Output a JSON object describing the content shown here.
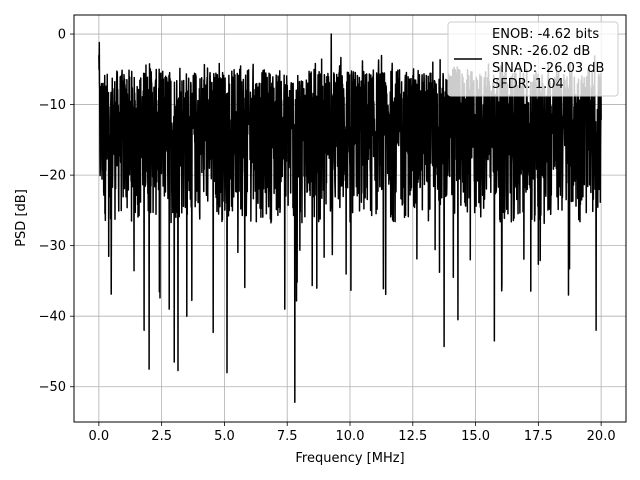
{
  "chart_data": {
    "type": "line",
    "title": "",
    "xlabel": "Frequency [MHz]",
    "ylabel": "PSD [dB]",
    "xlim": [
      -0.99,
      20.99
    ],
    "ylim": [
      -55,
      2.7
    ],
    "x_ticks": [
      0.0,
      2.5,
      5.0,
      7.5,
      10.0,
      12.5,
      15.0,
      17.5,
      20.0
    ],
    "x_tick_labels": [
      "0.0",
      "2.5",
      "5.0",
      "7.5",
      "10.0",
      "12.5",
      "15.0",
      "17.5",
      "20.0"
    ],
    "y_ticks": [
      0,
      -10,
      -20,
      -30,
      -40,
      -50
    ],
    "y_tick_labels": [
      "0",
      "−10",
      "−20",
      "−30",
      "−40",
      "−50"
    ],
    "grid": true,
    "legend_position": "top-right",
    "legend_entries": [
      "ENOB: -4.62 bits",
      "SNR: -26.02 dB",
      "SINAD: -26.03 dB",
      "SFDR: 1.04"
    ],
    "series": [
      {
        "color": "#000000",
        "x_range": [
          0,
          20
        ],
        "noise_band": {
          "upper": -5,
          "lower": -27
        },
        "peaks": [
          {
            "x": 0.0,
            "y": -3.0
          },
          {
            "x": 0.02,
            "y": -1.2
          },
          {
            "x": 9.25,
            "y": 0.0
          },
          {
            "x": 2.4,
            "y": -5.0
          },
          {
            "x": 10.5,
            "y": -3.8
          },
          {
            "x": 13.3,
            "y": -4.0
          }
        ],
        "troughs": [
          {
            "x": 1.8,
            "y": -42
          },
          {
            "x": 2.0,
            "y": -47.5
          },
          {
            "x": 2.8,
            "y": -39
          },
          {
            "x": 3.0,
            "y": -46.5
          },
          {
            "x": 3.15,
            "y": -47.7
          },
          {
            "x": 3.5,
            "y": -40
          },
          {
            "x": 4.55,
            "y": -42.3
          },
          {
            "x": 5.1,
            "y": -48
          },
          {
            "x": 7.8,
            "y": -52.2
          },
          {
            "x": 7.4,
            "y": -39
          },
          {
            "x": 13.75,
            "y": -44.3
          },
          {
            "x": 14.3,
            "y": -40.5
          },
          {
            "x": 15.75,
            "y": -43.5
          },
          {
            "x": 18.7,
            "y": -37
          },
          {
            "x": 19.8,
            "y": -42
          }
        ]
      }
    ]
  }
}
